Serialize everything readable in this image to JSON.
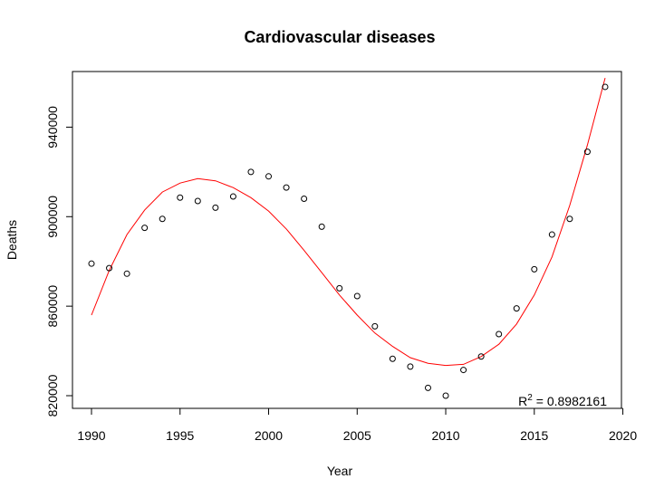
{
  "chart_data": {
    "type": "scatter",
    "title": "Cardiovascular diseases",
    "xlabel": "Year",
    "ylabel": "Deaths",
    "xlim": [
      1990,
      2019
    ],
    "ylim": [
      820000,
      960000
    ],
    "x_ticks": [
      1990,
      1995,
      2000,
      2005,
      2010,
      2015,
      2020
    ],
    "y_ticks": [
      820000,
      860000,
      900000,
      940000
    ],
    "grid": false,
    "series": [
      {
        "kind": "points",
        "color": "#000000",
        "x": [
          1990,
          1991,
          1992,
          1993,
          1994,
          1995,
          1996,
          1997,
          1998,
          1999,
          2000,
          2001,
          2002,
          2003,
          2004,
          2005,
          2006,
          2007,
          2008,
          2009,
          2010,
          2011,
          2012,
          2013,
          2014,
          2015,
          2016,
          2017,
          2018,
          2019
        ],
        "y": [
          879000,
          877000,
          874500,
          895000,
          899000,
          908500,
          907000,
          904000,
          909000,
          920000,
          918000,
          913000,
          908000,
          895500,
          868000,
          864500,
          851000,
          836500,
          833000,
          823500,
          820000,
          831500,
          837500,
          847500,
          859000,
          876500,
          892000,
          899000,
          929000,
          958000
        ]
      },
      {
        "kind": "fit",
        "color": "#ff0000",
        "x": [
          1990,
          1991,
          1992,
          1993,
          1994,
          1995,
          1996,
          1997,
          1998,
          1999,
          2000,
          2001,
          2002,
          2003,
          2004,
          2005,
          2006,
          2007,
          2008,
          2009,
          2010,
          2011,
          2012,
          2013,
          2014,
          2015,
          2016,
          2017,
          2018,
          2019
        ],
        "y": [
          856000,
          876000,
          892000,
          903000,
          911000,
          915000,
          917000,
          916000,
          913000,
          908500,
          902500,
          894500,
          885000,
          875000,
          865000,
          856000,
          848000,
          842000,
          837000,
          834500,
          833500,
          834000,
          837500,
          843000,
          852000,
          865000,
          882000,
          905000,
          932000,
          962000
        ]
      }
    ],
    "annotation": {
      "base": "R",
      "sup": "2",
      "rest": " = 0.8982161",
      "position": "bottom-right"
    }
  }
}
